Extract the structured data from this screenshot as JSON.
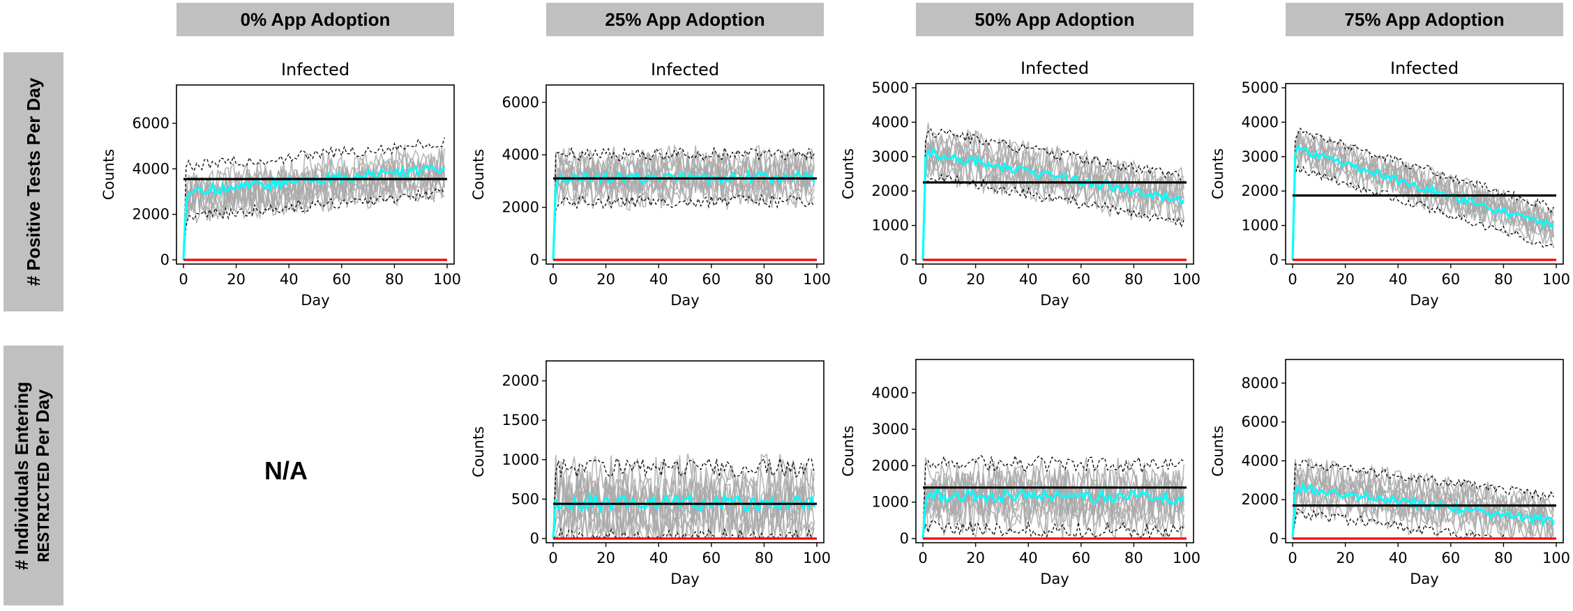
{
  "column_headers": [
    "0% App Adoption",
    "25% App Adoption",
    "50% App Adoption",
    "75% App Adoption"
  ],
  "row_headers": {
    "row1": "# Positive Tests Per Day",
    "row2_line1": "# Individuals Entering",
    "row2_line2_mono": "RESTRICTED",
    "row2_line2_rest": " Per Day"
  },
  "na_label": "N/A",
  "colors": {
    "individual_runs": "#a9a9a9",
    "mean": "#00ffff",
    "band": "#000000",
    "reference_black": "#000000",
    "reference_red": "#ff0000"
  },
  "chart_data": [
    {
      "id": "row1-0",
      "type": "line",
      "title": "Infected",
      "xlabel": "Day",
      "ylabel": "Counts",
      "xlim": [
        0,
        100
      ],
      "ylim": [
        0,
        7500
      ],
      "xticks": [
        0,
        20,
        40,
        60,
        80,
        100
      ],
      "yticks": [
        0,
        2000,
        4000,
        6000
      ],
      "reference_black": 3550,
      "reference_red": 0,
      "mean_start": 3000,
      "mean_end": 4050,
      "band_half_width": 1100,
      "noise": 900
    },
    {
      "id": "row1-25",
      "type": "line",
      "title": "Infected",
      "xlabel": "Day",
      "ylabel": "Counts",
      "xlim": [
        0,
        100
      ],
      "ylim": [
        0,
        6500
      ],
      "xticks": [
        0,
        20,
        40,
        60,
        80,
        100
      ],
      "yticks": [
        0,
        2000,
        4000,
        6000
      ],
      "reference_black": 3100,
      "reference_red": 0,
      "mean_start": 3100,
      "mean_end": 3150,
      "band_half_width": 900,
      "noise": 800
    },
    {
      "id": "row1-50",
      "type": "line",
      "title": "Infected",
      "xlabel": "Day",
      "ylabel": "Counts",
      "xlim": [
        0,
        100
      ],
      "ylim": [
        0,
        5000
      ],
      "xticks": [
        0,
        20,
        40,
        60,
        80,
        100
      ],
      "yticks": [
        0,
        1000,
        2000,
        3000,
        4000,
        5000
      ],
      "reference_black": 2250,
      "reference_red": 0,
      "mean_start": 3100,
      "mean_end": 1750,
      "band_half_width": 650,
      "noise": 550
    },
    {
      "id": "row1-75",
      "type": "line",
      "title": "Infected",
      "xlabel": "Day",
      "ylabel": "Counts",
      "xlim": [
        0,
        100
      ],
      "ylim": [
        0,
        5000
      ],
      "xticks": [
        0,
        20,
        40,
        60,
        80,
        100
      ],
      "yticks": [
        0,
        1000,
        2000,
        3000,
        4000,
        5000
      ],
      "reference_black": 1870,
      "reference_red": 0,
      "mean_start": 3200,
      "mean_end": 950,
      "band_half_width": 550,
      "noise": 450
    },
    {
      "id": "row2-25",
      "type": "line",
      "title": "",
      "xlabel": "Day",
      "ylabel": "Counts",
      "xlim": [
        0,
        100
      ],
      "ylim": [
        0,
        2200
      ],
      "xticks": [
        0,
        20,
        40,
        60,
        80,
        100
      ],
      "yticks": [
        0,
        500,
        1000,
        1500,
        2000
      ],
      "reference_black": 440,
      "reference_red": 0,
      "mean_start": 450,
      "mean_end": 450,
      "band_half_width": 450,
      "noise": 400
    },
    {
      "id": "row2-50",
      "type": "line",
      "title": "",
      "xlabel": "Day",
      "ylabel": "Counts",
      "xlim": [
        0,
        100
      ],
      "ylim": [
        0,
        4800
      ],
      "xticks": [
        0,
        20,
        40,
        60,
        80,
        100
      ],
      "yticks": [
        0,
        1000,
        2000,
        3000,
        4000
      ],
      "reference_black": 1400,
      "reference_red": 0,
      "mean_start": 1200,
      "mean_end": 1100,
      "band_half_width": 900,
      "noise": 700
    },
    {
      "id": "row2-75",
      "type": "line",
      "title": "",
      "xlabel": "Day",
      "ylabel": "Counts",
      "xlim": [
        0,
        100
      ],
      "ylim": [
        0,
        9000
      ],
      "xticks": [
        0,
        20,
        40,
        60,
        80,
        100
      ],
      "yticks": [
        0,
        2000,
        4000,
        6000,
        8000
      ],
      "reference_black": 1700,
      "reference_red": 0,
      "mean_start": 2600,
      "mean_end": 900,
      "band_half_width": 1300,
      "noise": 900
    }
  ]
}
